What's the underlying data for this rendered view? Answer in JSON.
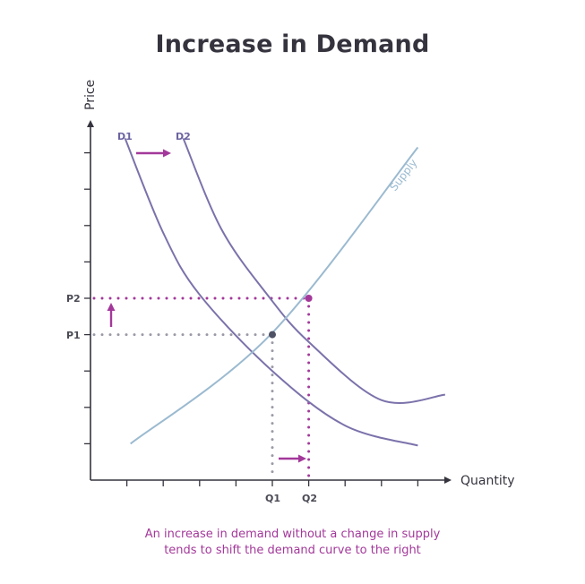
{
  "chart_data": {
    "type": "line",
    "title": "Increase in Demand",
    "xlabel": "Quantity",
    "ylabel": "Price",
    "x_ticks": 9,
    "y_ticks": 9,
    "xlim": [
      0,
      10
    ],
    "ylim": [
      0,
      10
    ],
    "grid": false,
    "series": [
      {
        "name": "D1",
        "color": "#7b72ab",
        "points": [
          [
            0.95,
            9.4
          ],
          [
            2.0,
            6.8
          ],
          [
            3.0,
            5.1
          ],
          [
            5.0,
            3.0
          ],
          [
            7.0,
            1.5
          ],
          [
            9.0,
            0.95
          ]
        ]
      },
      {
        "name": "D2",
        "color": "#7b72ab",
        "points": [
          [
            2.55,
            9.4
          ],
          [
            3.6,
            6.9
          ],
          [
            4.9,
            5.05
          ],
          [
            6.0,
            3.8
          ],
          [
            8.0,
            2.2
          ],
          [
            9.75,
            2.35
          ]
        ]
      },
      {
        "name": "Supply",
        "color": "#9bbad0",
        "points": [
          [
            1.1,
            1.0
          ],
          [
            4.95,
            4.0
          ],
          [
            9.0,
            9.15
          ]
        ]
      }
    ],
    "equilibria": [
      {
        "label_x": "Q1",
        "label_y": "P1",
        "x": 5.0,
        "y": 4.0,
        "color": "#4f5164"
      },
      {
        "label_x": "Q2",
        "label_y": "P2",
        "x": 6.0,
        "y": 5.0,
        "color": "#a3389a"
      }
    ],
    "annotations": [
      {
        "type": "arrow",
        "direction": "right",
        "meaning": "demand shift D1 to D2",
        "color": "#a3389a"
      },
      {
        "type": "arrow",
        "direction": "up",
        "meaning": "price rises P1 to P2",
        "color": "#a3389a"
      },
      {
        "type": "arrow",
        "direction": "right",
        "meaning": "quantity rises Q1 to Q2",
        "color": "#a3389a"
      }
    ],
    "labels": {
      "d1": "D1",
      "d2": "D2",
      "supply": "Supply",
      "p1": "P1",
      "p2": "P2",
      "q1": "Q1",
      "q2": "Q2"
    }
  },
  "caption": {
    "line1": "An increase in demand without a change in supply",
    "line2": "tends to shift the demand curve to the right"
  }
}
